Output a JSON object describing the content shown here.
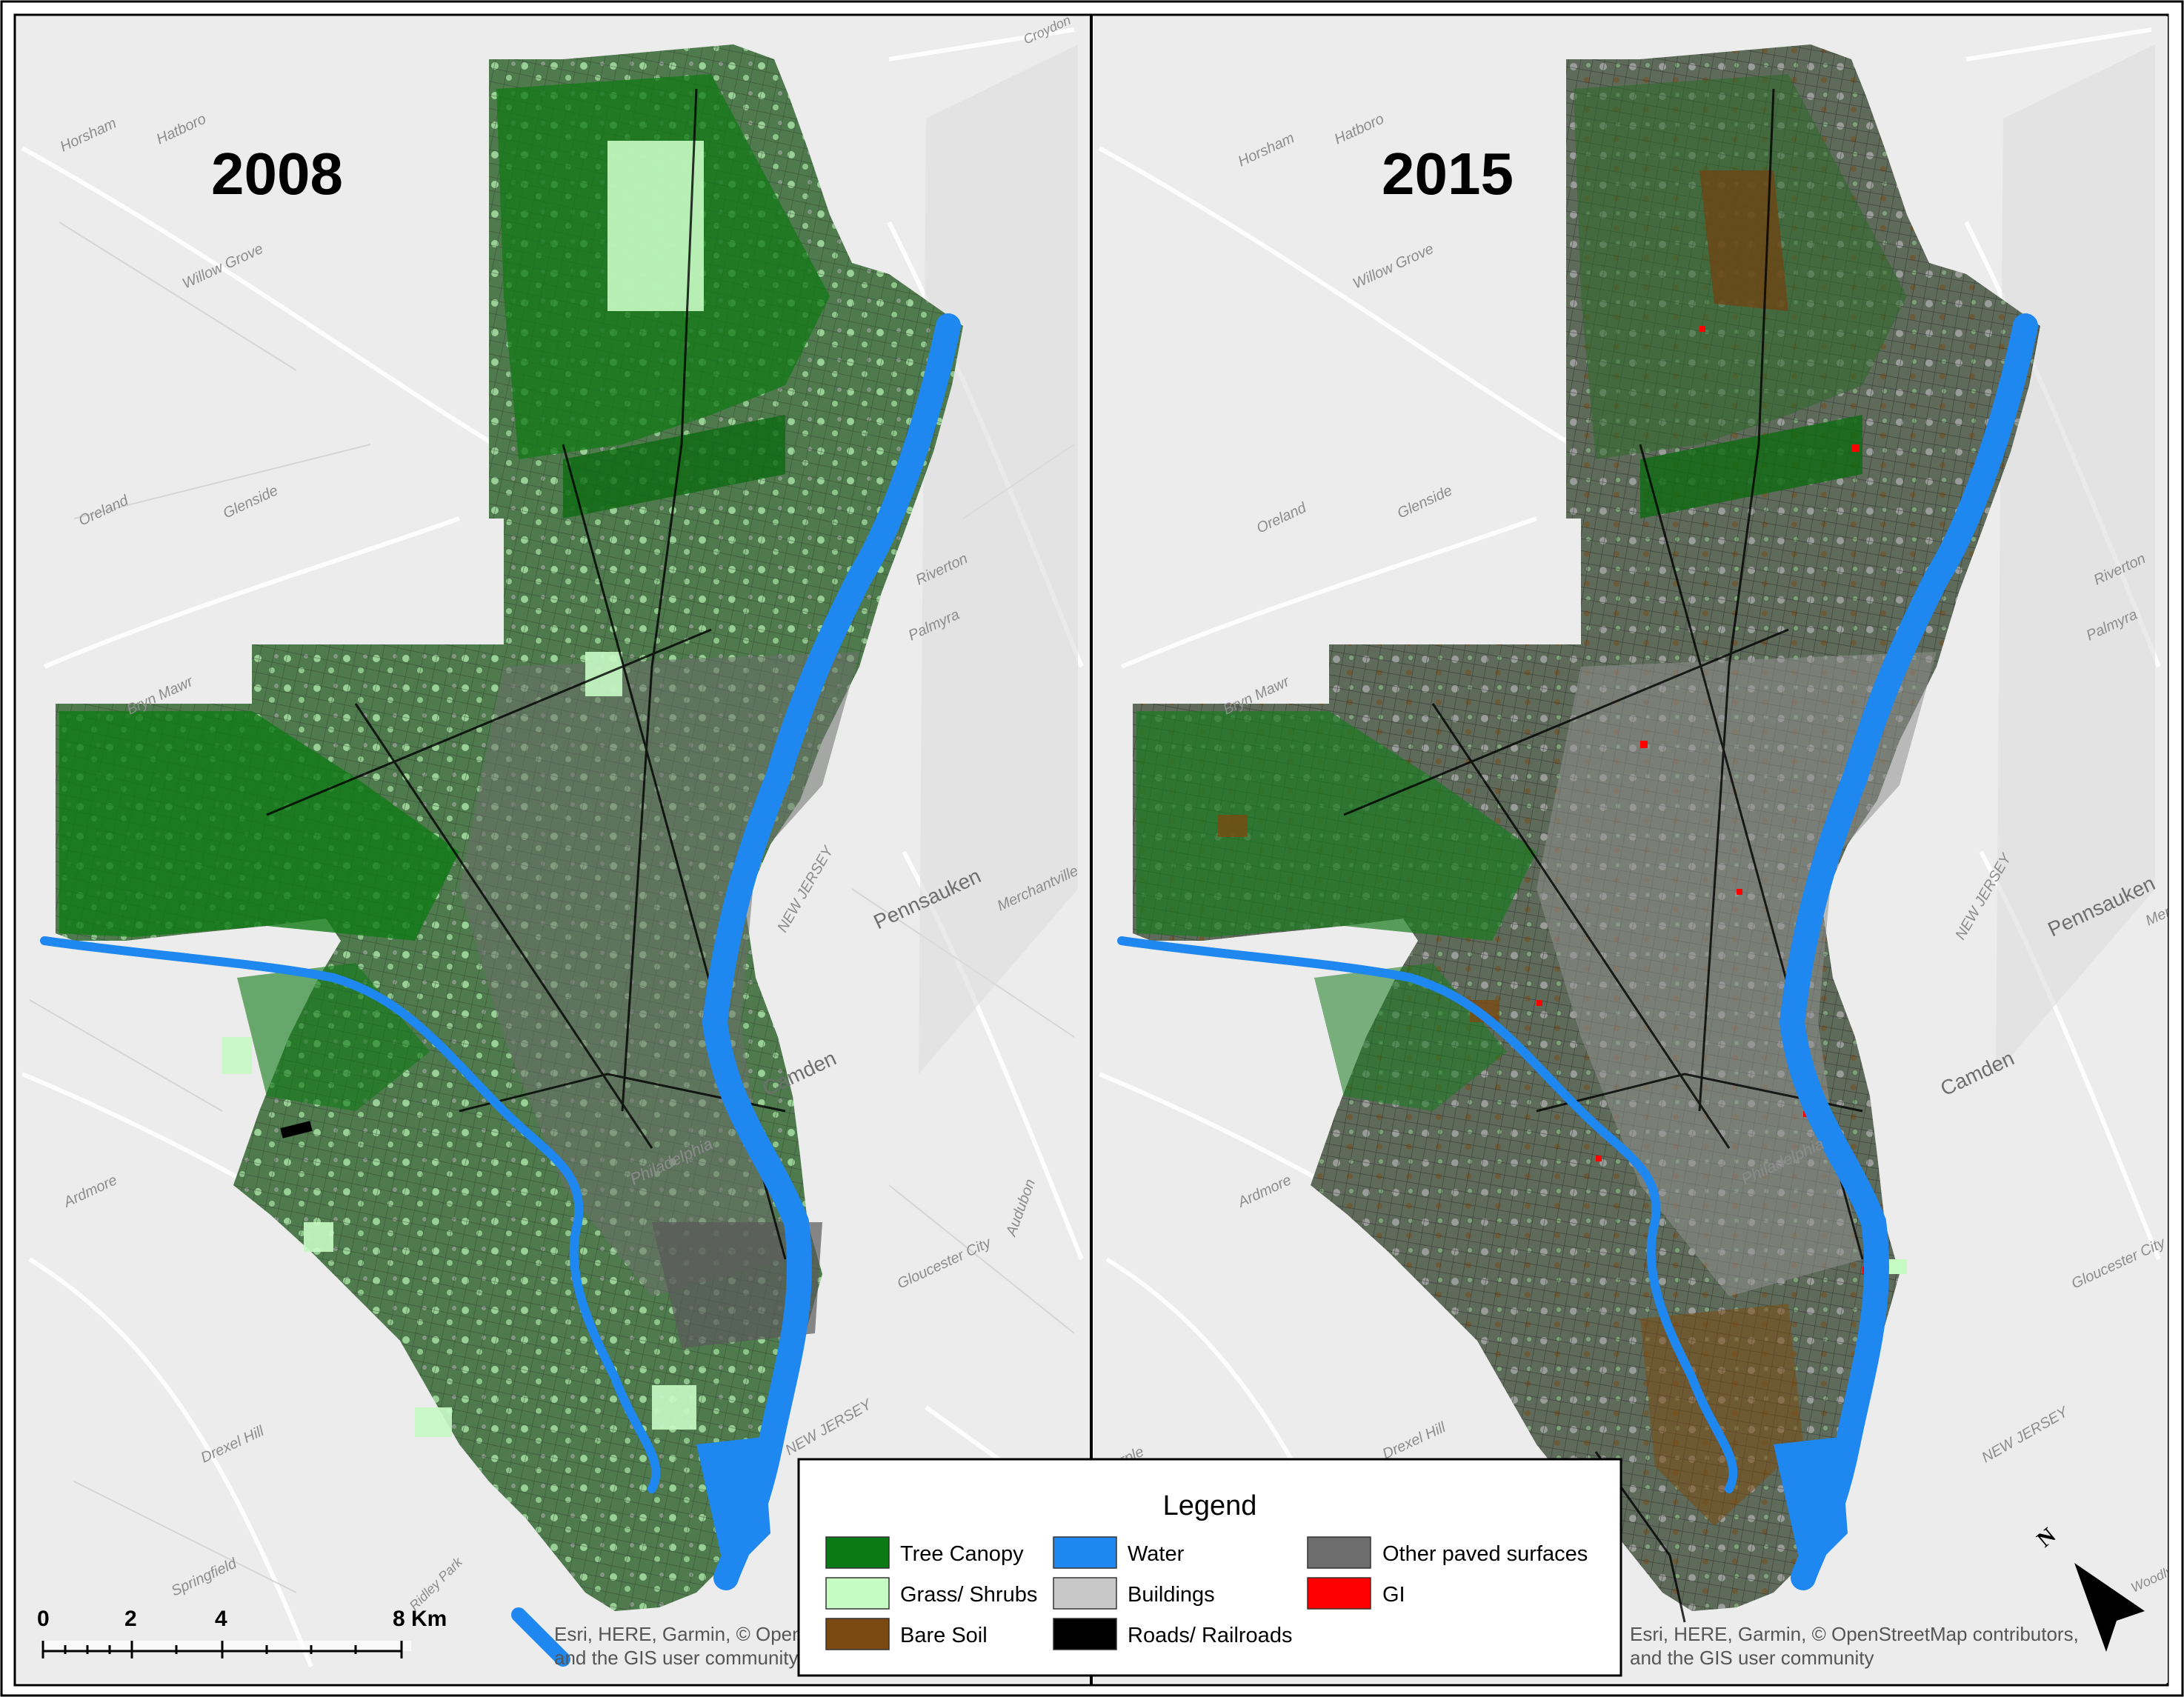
{
  "panels": [
    {
      "year": "2008",
      "credit_line1": "Esri, HERE, Garmin, © OpenStreetMap contributors,",
      "credit_line2": "and the GIS user community",
      "place_labels": [
        "Horsham",
        "Hatboro",
        "Croydon",
        "Willow Grove",
        "Oreland",
        "Glenside",
        "Riverton",
        "Palmyra",
        "Pennsauken",
        "Merchantville",
        "Camden",
        "Audubon",
        "Gloucester City",
        "Ardmore",
        "Drexel Hill",
        "Springfield",
        "Ridley Park",
        "NEW JERSEY",
        "NEW JERSEY",
        "Philadelphia",
        "Bryn Mawr"
      ]
    },
    {
      "year": "2015",
      "credit_line1": "Esri, HERE, Garmin, © OpenStreetMap contributors,",
      "credit_line2": "and the GIS user community",
      "place_labels": [
        "Horsham",
        "Hatboro",
        "Willow Grove",
        "Oreland",
        "Glenside",
        "Riverton",
        "Palmyra",
        "Pennsauken",
        "Merchantville",
        "Camden",
        "Gloucester City",
        "Ardmore",
        "Drexel Hill",
        "Marple",
        "NEW JERSEY",
        "NEW JERSEY",
        "Philadelphia",
        "Bryn Mawr",
        "Woodlynne"
      ]
    }
  ],
  "legend": {
    "title": "Legend",
    "items": [
      {
        "label": "Tree Canopy",
        "color": "#0b7a14"
      },
      {
        "label": "Grass/ Shrubs",
        "color": "#c6fbc4"
      },
      {
        "label": "Bare Soil",
        "color": "#7a4a12"
      },
      {
        "label": "Water",
        "color": "#1e87f0"
      },
      {
        "label": "Buildings",
        "color": "#c8c8c8"
      },
      {
        "label": "Roads/ Railroads",
        "color": "#000000"
      },
      {
        "label": "Other paved surfaces",
        "color": "#6e6e6e"
      },
      {
        "label": "GI",
        "color": "#ff0000"
      }
    ]
  },
  "scale_bar": {
    "ticks": [
      "0",
      "2",
      "4",
      "8 Km"
    ]
  },
  "north_arrow": {
    "label": "N"
  }
}
